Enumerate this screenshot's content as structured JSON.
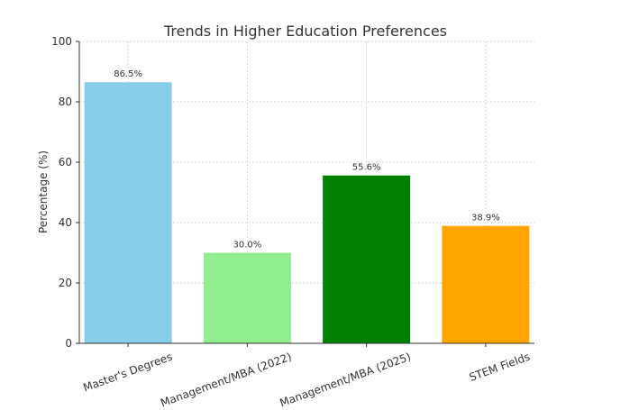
{
  "chart_data": {
    "type": "bar",
    "title": "Trends in Higher Education Preferences",
    "xlabel": "",
    "ylabel": "Percentage (%)",
    "categories": [
      "Master's Degrees",
      "Management/MBA (2022)",
      "Management/MBA (2025)",
      "STEM Fields"
    ],
    "values": [
      86.5,
      30.0,
      55.6,
      38.9
    ],
    "value_labels": [
      "86.5%",
      "30.0%",
      "55.6%",
      "38.9%"
    ],
    "colors": [
      "#87ceeb",
      "#90ee90",
      "#008000",
      "#ffa500"
    ],
    "ylim": [
      0,
      100
    ],
    "yticks": [
      0,
      20,
      40,
      60,
      80,
      100
    ],
    "grid": true,
    "legend": "none"
  }
}
